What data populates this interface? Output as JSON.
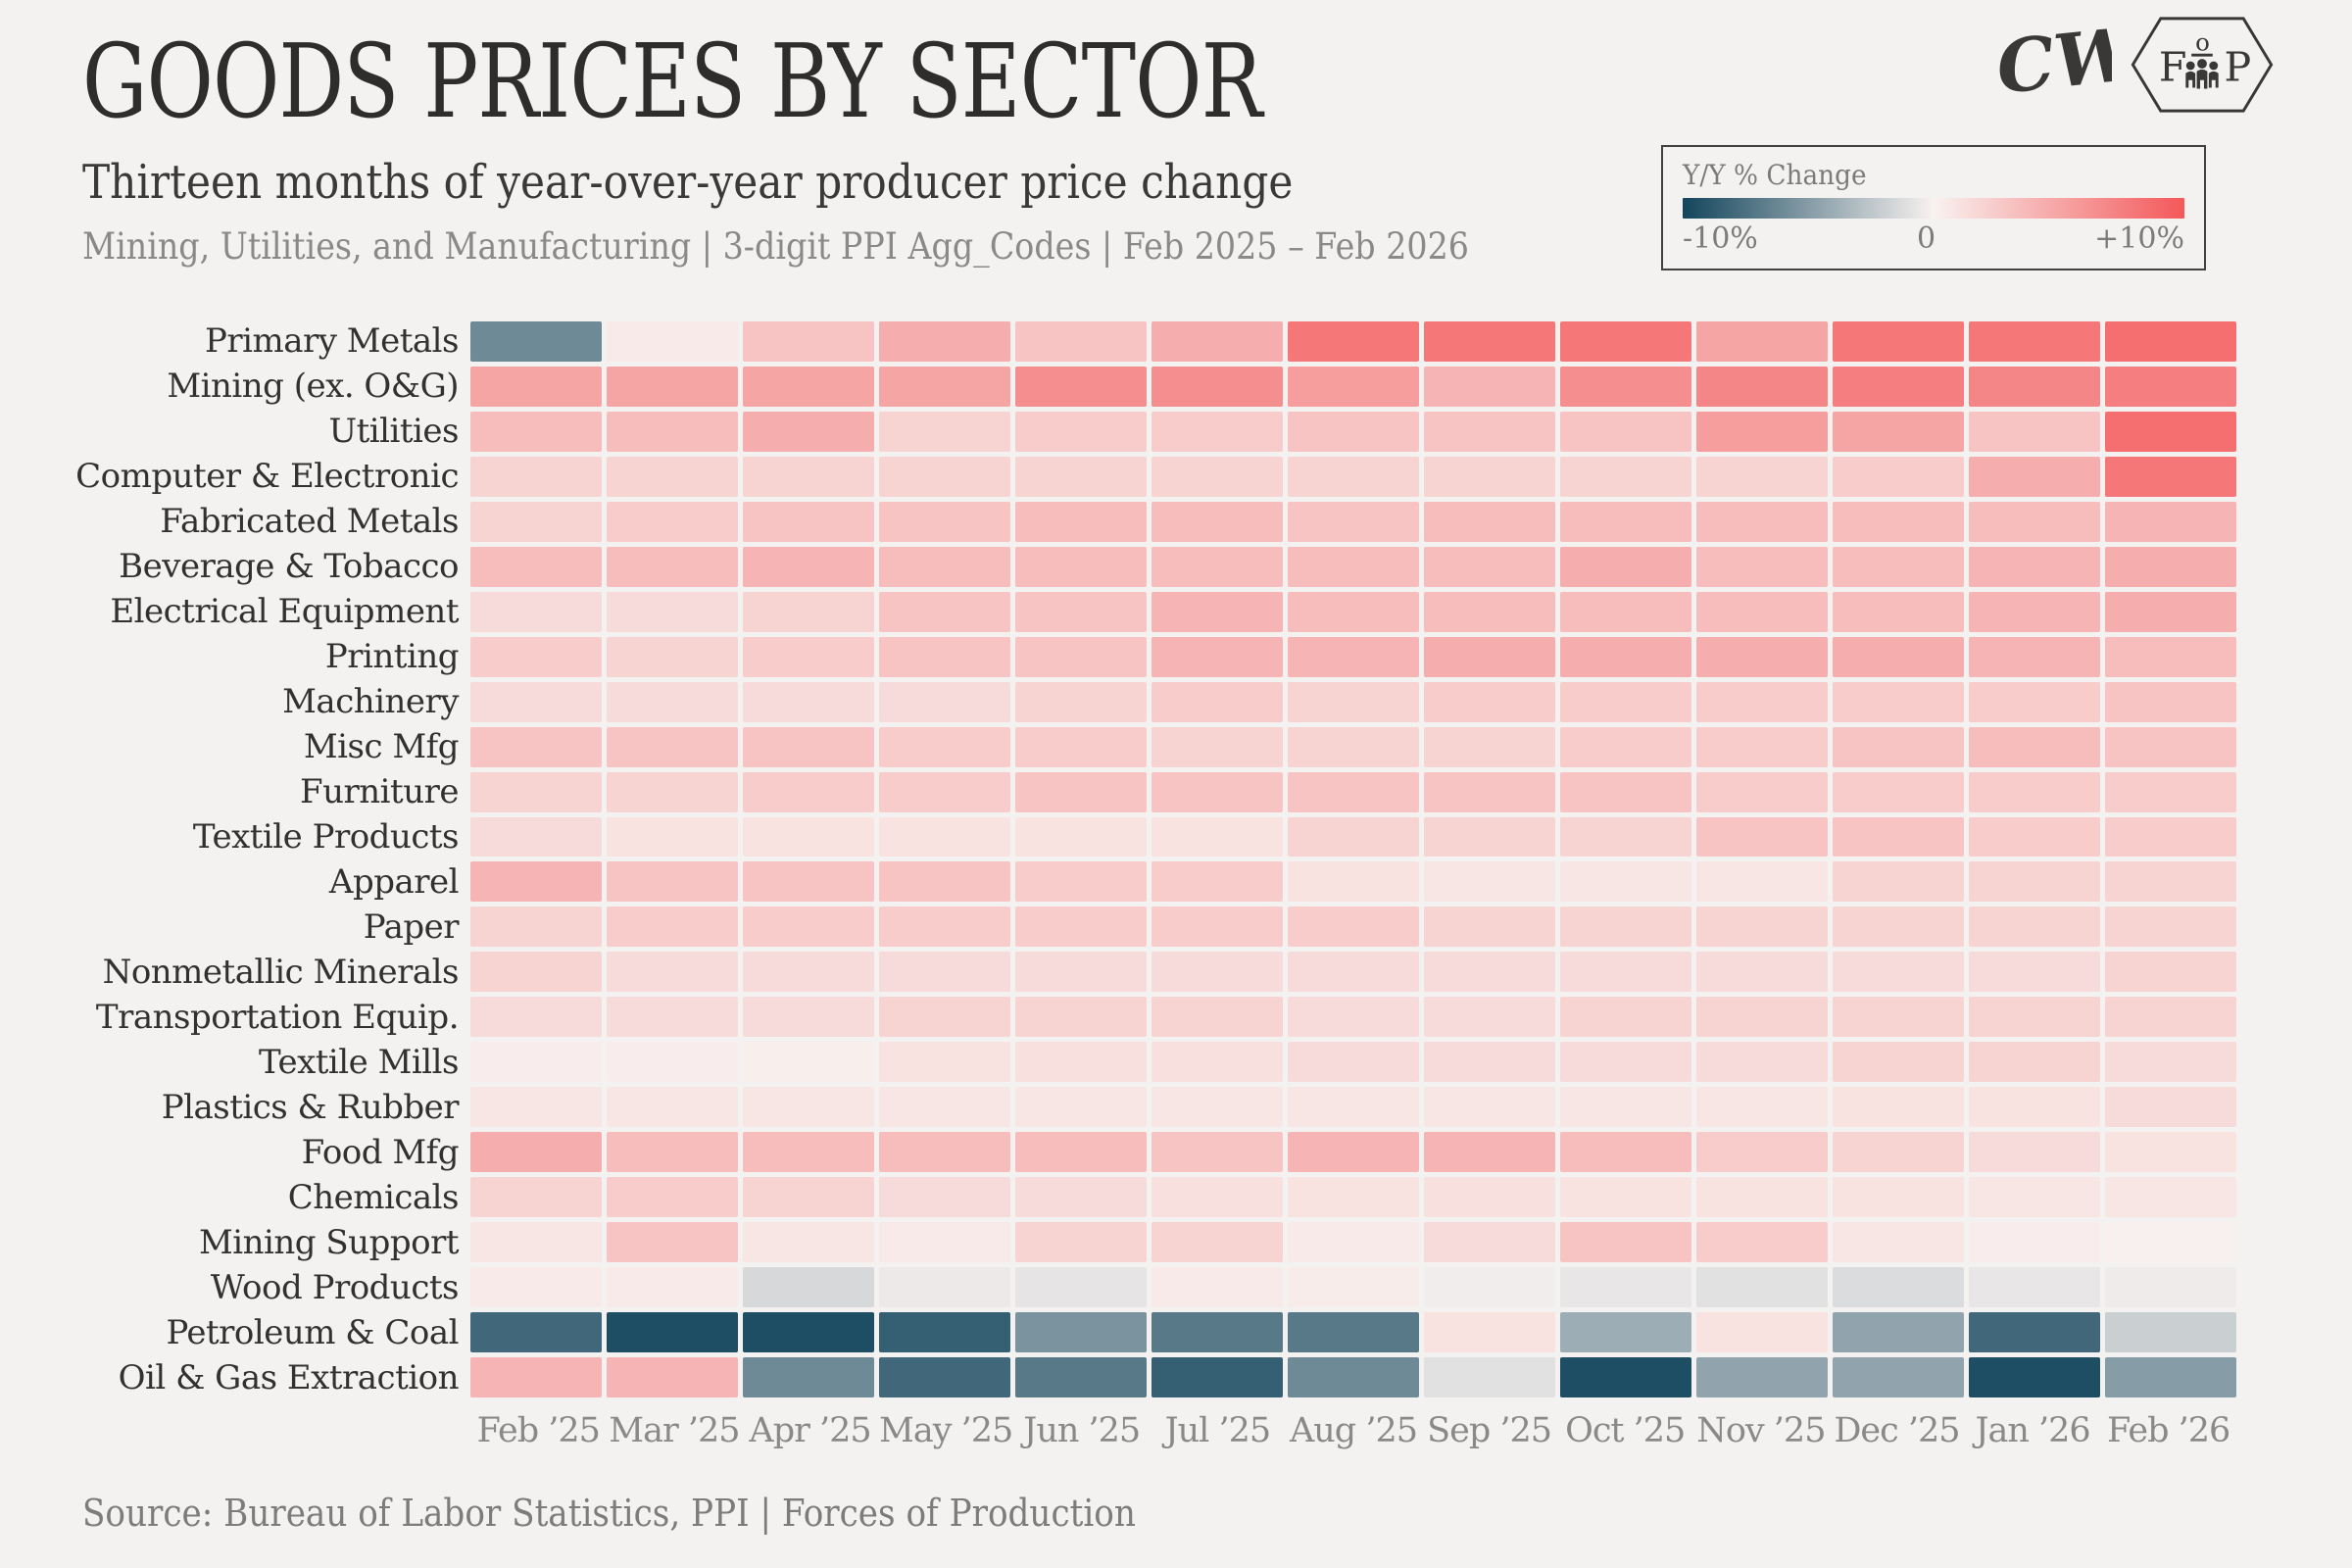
{
  "header": {
    "title": "GOODS PRICES BY SECTOR",
    "subtitle": "Thirteen months of year-over-year producer price change",
    "meta": "Mining, Utilities, and Manufacturing | 3-digit PPI Agg_Codes | Feb 2025 – Feb 2026"
  },
  "logos": {
    "cw_text": "CW",
    "fop_left": "F",
    "fop_right": "P",
    "fop_top": "o"
  },
  "legend": {
    "title": "Y/Y % Change",
    "min_label": "-10%",
    "mid_label": "0",
    "max_label": "+10%",
    "colors": {
      "negative_end": "#13455c",
      "zero": "#f8f2f0",
      "positive_end": "#f4585a"
    }
  },
  "chart_data": {
    "type": "heatmap",
    "title": "Goods prices by sector",
    "unit": "year-over-year percent change",
    "value_range": [
      -10,
      10
    ],
    "legend_position": "top-right",
    "columns": [
      "Feb ’25",
      "Mar ’25",
      "Apr ’25",
      "May ’25",
      "Jun ’25",
      "Jul ’25",
      "Aug ’25",
      "Sep ’25",
      "Oct ’25",
      "Nov ’25",
      "Dec ’25",
      "Jan ’26",
      "Feb ’26"
    ],
    "rows": [
      "Primary Metals",
      "Mining (ex. O&G)",
      "Utilities",
      "Computer & Electronic",
      "Fabricated Metals",
      "Beverage & Tobacco",
      "Electrical Equipment",
      "Printing",
      "Machinery",
      "Misc Mfg",
      "Furniture",
      "Textile Products",
      "Apparel",
      "Paper",
      "Nonmetallic Minerals",
      "Transportation Equip.",
      "Textile Mills",
      "Plastics & Rubber",
      "Food Mfg",
      "Chemicals",
      "Mining Support",
      "Wood Products",
      "Petroleum & Coal",
      "Oil & Gas Extraction"
    ],
    "values": [
      [
        -6,
        0.5,
        3,
        4.5,
        3,
        4.5,
        8,
        8,
        8,
        5,
        8,
        8,
        8.5
      ],
      [
        5,
        5,
        5,
        5,
        6.5,
        6.5,
        5.5,
        4,
        6.5,
        7,
        7.5,
        7,
        7.5
      ],
      [
        3.5,
        3.5,
        4.5,
        2,
        2.5,
        2.5,
        3,
        3,
        3,
        5.5,
        5,
        3,
        8.5
      ],
      [
        2,
        2,
        2,
        2,
        2,
        2,
        2,
        2,
        2,
        2,
        2.5,
        4.5,
        8
      ],
      [
        2,
        2.5,
        3,
        3,
        3.5,
        3.5,
        3,
        3.5,
        3.5,
        3.5,
        3.5,
        3.5,
        4
      ],
      [
        3.5,
        3.5,
        4,
        3.5,
        3.5,
        3.5,
        3.5,
        3.5,
        4.5,
        3.5,
        3.5,
        4,
        4.5
      ],
      [
        1.5,
        1.5,
        2,
        3,
        3,
        4,
        3.5,
        3.5,
        3.5,
        3.5,
        3.5,
        4,
        4.5
      ],
      [
        2.5,
        2,
        2.5,
        3,
        3,
        4,
        4,
        4.5,
        4.5,
        4.5,
        4.5,
        4,
        3.5
      ],
      [
        1.5,
        1.5,
        1.5,
        1.5,
        2,
        2.5,
        2,
        2.5,
        2.5,
        2.5,
        2.5,
        2.5,
        3
      ],
      [
        3,
        3,
        3,
        2.5,
        2.5,
        2,
        2,
        2,
        2.5,
        2.5,
        3,
        3.5,
        3
      ],
      [
        2,
        2,
        2.5,
        2.5,
        3,
        3,
        3,
        3,
        3,
        2.5,
        2.5,
        2.5,
        2.5
      ],
      [
        1.5,
        1,
        1,
        1,
        1,
        1,
        2,
        2,
        2,
        3,
        3,
        2.5,
        2.5
      ],
      [
        4,
        3,
        3,
        3,
        2.5,
        2.5,
        1,
        0.8,
        0.8,
        0.8,
        2,
        2,
        2
      ],
      [
        2,
        2.5,
        2.5,
        2.5,
        2.5,
        2.5,
        2.5,
        2,
        2,
        2,
        2,
        2,
        2
      ],
      [
        2,
        1.5,
        1.5,
        1.5,
        1.5,
        1.5,
        1.5,
        1.5,
        1.5,
        1.5,
        1.5,
        1.5,
        2
      ],
      [
        1.5,
        1.5,
        1.5,
        2,
        2,
        2,
        1.5,
        1.5,
        2,
        2,
        2,
        2,
        2
      ],
      [
        0.3,
        0.3,
        0.2,
        1,
        1.2,
        1.2,
        1.5,
        1.5,
        1.5,
        1.5,
        2,
        2,
        1.5
      ],
      [
        0.8,
        0.8,
        0.8,
        0.8,
        0.8,
        0.8,
        0.8,
        0.8,
        0.8,
        0.8,
        1,
        1,
        1.5
      ],
      [
        4.5,
        3.5,
        3.5,
        3.5,
        3.5,
        3,
        4,
        4,
        3.5,
        2.5,
        2,
        1.5,
        1
      ],
      [
        2,
        2.5,
        2,
        1.5,
        1.5,
        1.2,
        1,
        1.2,
        1,
        1,
        1,
        0.8,
        0.8
      ],
      [
        0.8,
        3,
        0.8,
        0.5,
        2,
        2,
        0.5,
        1.5,
        3,
        2.5,
        0.8,
        0.3,
        0.1
      ],
      [
        0.5,
        0.5,
        -1.5,
        -0.5,
        -0.8,
        0.5,
        0.4,
        -0.3,
        -0.7,
        -1,
        -1.3,
        -0.7,
        -0.4
      ],
      [
        -8,
        -9.5,
        -9.5,
        -8.5,
        -5.5,
        -7,
        -7,
        1,
        -4,
        1,
        -4.5,
        -8,
        -2
      ],
      [
        4,
        4,
        -6,
        -8,
        -7,
        -8.5,
        -6,
        -1,
        -9.5,
        -4.5,
        -4.5,
        -9.5,
        -5
      ]
    ]
  },
  "footer": {
    "source": "Source: Bureau of Labor Statistics, PPI | Forces of Production"
  }
}
